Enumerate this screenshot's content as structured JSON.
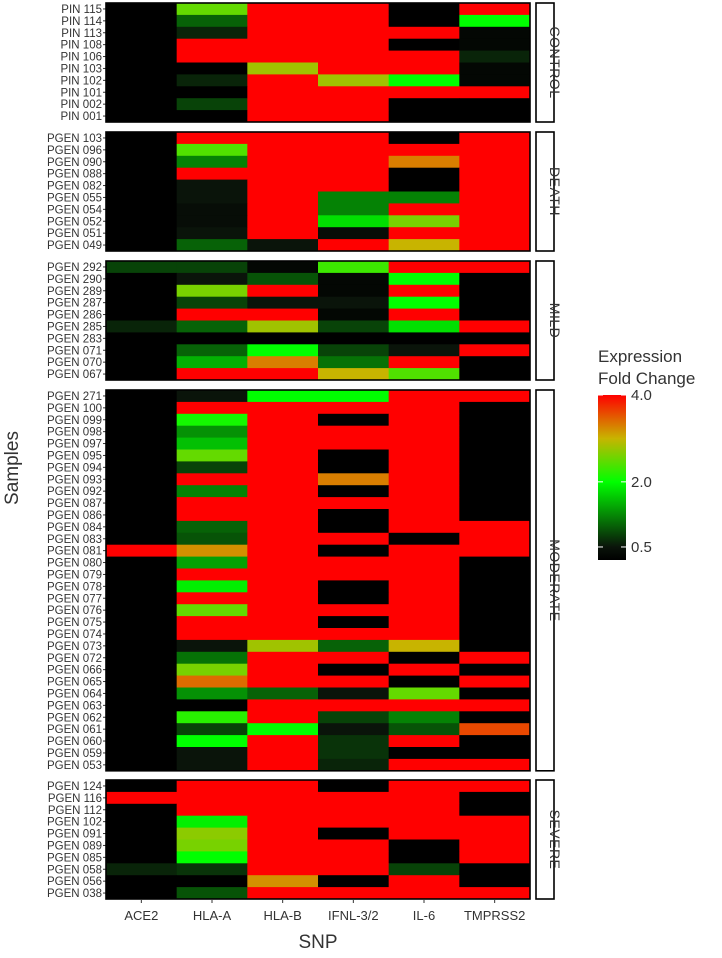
{
  "chart_data": {
    "type": "heatmap",
    "xlabel": "SNP",
    "ylabel": "Samples",
    "columns": [
      "ACE2",
      "HLA-A",
      "HLA-B",
      "IFNL-3/2",
      "IL-6",
      "TMPRSS2"
    ],
    "legend": {
      "title_line1": "Expression",
      "title_line2": "Fold Change",
      "ticks": [
        {
          "label": "4.0",
          "value": 4.0
        },
        {
          "label": "2.0",
          "value": 2.0
        },
        {
          "label": "0.5",
          "value": 0.5
        }
      ],
      "range": [
        0.2,
        4.0
      ],
      "color_stops": [
        {
          "value": 0.2,
          "color": "#000000"
        },
        {
          "value": 0.5,
          "color": "#0a140a"
        },
        {
          "value": 2.0,
          "color": "#00ff00"
        },
        {
          "value": 3.0,
          "color": "#c8b400"
        },
        {
          "value": 4.0,
          "color": "#ff0000"
        }
      ]
    },
    "groups": [
      {
        "name": "CONTROL",
        "samples": [
          "PIN 115",
          "PIN 114",
          "PIN 113",
          "PIN 108",
          "PIN 106",
          "PIN 103",
          "PIN 102",
          "PIN 101",
          "PIN 002",
          "PIN 001"
        ],
        "values": [
          [
            0.2,
            2.5,
            4,
            4,
            0.2,
            4
          ],
          [
            0.2,
            1.0,
            4,
            4,
            0.2,
            2.0
          ],
          [
            0.2,
            0.6,
            4,
            4,
            4,
            0.3
          ],
          [
            0.2,
            4,
            4,
            4,
            0.2,
            0.3
          ],
          [
            0.2,
            4,
            4,
            4,
            4,
            0.6
          ],
          [
            0.2,
            0.2,
            2.8,
            4,
            4,
            0.3
          ],
          [
            0.2,
            0.6,
            4,
            2.8,
            2.0,
            0.3
          ],
          [
            0.2,
            0.2,
            4,
            4,
            4,
            4
          ],
          [
            0.2,
            0.8,
            4,
            4,
            0.2,
            0.2
          ],
          [
            0.2,
            0.2,
            4,
            4,
            0.2,
            0.2
          ]
        ]
      },
      {
        "name": "DEATH",
        "samples": [
          "PGEN 103",
          "PGEN 096",
          "PGEN 090",
          "PGEN 088",
          "PGEN 082",
          "PGEN 055",
          "PGEN 054",
          "PGEN 052",
          "PGEN 051",
          "PGEN 049"
        ],
        "values": [
          [
            0.2,
            4,
            4,
            4,
            0.2,
            4
          ],
          [
            0.2,
            2.4,
            4,
            4,
            4,
            4
          ],
          [
            0.2,
            1.2,
            4,
            4,
            3.3,
            4
          ],
          [
            0.2,
            4,
            4,
            4,
            0.2,
            4
          ],
          [
            0.2,
            0.5,
            4,
            4,
            0.2,
            4
          ],
          [
            0.2,
            0.5,
            4,
            1.2,
            1.2,
            4
          ],
          [
            0.2,
            0.4,
            4,
            1.2,
            4,
            4
          ],
          [
            0.2,
            0.4,
            4,
            1.8,
            2.6,
            4
          ],
          [
            0.2,
            0.5,
            4,
            0.4,
            4,
            4
          ],
          [
            0.2,
            1.0,
            0.5,
            4,
            3.0,
            4
          ]
        ]
      },
      {
        "name": "MILD",
        "samples": [
          "PGEN 292",
          "PGEN 290",
          "PGEN 289",
          "PGEN 287",
          "PGEN 286",
          "PGEN 285",
          "PGEN 283",
          "PGEN 071",
          "PGEN 070",
          "PGEN 067"
        ],
        "values": [
          [
            0.8,
            0.8,
            0.3,
            2.3,
            4,
            4
          ],
          [
            0.2,
            0.5,
            0.9,
            0.3,
            2.0,
            0.2
          ],
          [
            0.2,
            2.6,
            4,
            0.3,
            4,
            0.2
          ],
          [
            0.2,
            0.8,
            0.5,
            0.5,
            2.0,
            0.2
          ],
          [
            0.2,
            4,
            4,
            0.3,
            4,
            0.2
          ],
          [
            0.6,
            1.0,
            2.8,
            0.8,
            1.8,
            4
          ],
          [
            0.2,
            0.2,
            0.2,
            0.2,
            0.2,
            0.2
          ],
          [
            0.2,
            1.0,
            2.0,
            0.8,
            0.5,
            4
          ],
          [
            0.2,
            1.5,
            3.3,
            1.1,
            4,
            0.2
          ],
          [
            0.2,
            4,
            4,
            3.0,
            2.4,
            0.2
          ]
        ]
      },
      {
        "name": "MODERATE",
        "samples": [
          "PGEN 271",
          "PGEN 100",
          "PGEN 099",
          "PGEN 098",
          "PGEN 097",
          "PGEN 095",
          "PGEN 094",
          "PGEN 093",
          "PGEN 092",
          "PGEN 087",
          "PGEN 086",
          "PGEN 084",
          "PGEN 083",
          "PGEN 081",
          "PGEN 080",
          "PGEN 079",
          "PGEN 078",
          "PGEN 077",
          "PGEN 076",
          "PGEN 075",
          "PGEN 074",
          "PGEN 073",
          "PGEN 072",
          "PGEN 066",
          "PGEN 065",
          "PGEN 064",
          "PGEN 063",
          "PGEN 062",
          "PGEN 061",
          "PGEN 060",
          "PGEN 059",
          "PGEN 053"
        ],
        "values": [
          [
            0.2,
            0.5,
            2.0,
            2.0,
            4,
            4
          ],
          [
            0.2,
            4,
            4,
            4,
            4,
            0.2
          ],
          [
            0.2,
            2.1,
            4,
            0.2,
            4,
            0.2
          ],
          [
            0.2,
            1.3,
            4,
            4,
            4,
            0.2
          ],
          [
            0.2,
            1.6,
            4,
            4,
            4,
            0.2
          ],
          [
            0.2,
            2.5,
            4,
            0.2,
            4,
            0.2
          ],
          [
            0.2,
            0.8,
            4,
            0.2,
            4,
            0.2
          ],
          [
            0.2,
            4,
            4,
            3.3,
            4,
            0.2
          ],
          [
            0.2,
            1.2,
            4,
            0.2,
            4,
            0.2
          ],
          [
            0.2,
            4,
            4,
            4,
            4,
            0.2
          ],
          [
            0.2,
            4,
            4,
            0.2,
            4,
            0.2
          ],
          [
            0.2,
            1.0,
            4,
            0.2,
            4,
            4
          ],
          [
            0.2,
            0.9,
            4,
            4,
            0.2,
            4
          ],
          [
            4,
            3.2,
            4,
            0.2,
            4,
            4
          ],
          [
            0.2,
            1.4,
            4,
            4,
            4,
            0.2
          ],
          [
            0.2,
            4,
            4,
            4,
            4,
            0.2
          ],
          [
            0.2,
            1.9,
            4,
            0.2,
            4,
            0.2
          ],
          [
            0.2,
            4,
            4,
            0.2,
            4,
            0.2
          ],
          [
            0.2,
            2.5,
            4,
            4,
            4,
            0.2
          ],
          [
            0.2,
            4,
            4,
            0.2,
            4,
            0.2
          ],
          [
            0.2,
            4,
            4,
            4,
            4,
            0.2
          ],
          [
            0.2,
            0.5,
            2.8,
            1.0,
            3.0,
            0.2
          ],
          [
            0.2,
            1.1,
            4,
            4,
            0.2,
            4
          ],
          [
            0.2,
            2.6,
            4,
            0.2,
            4,
            0.2
          ],
          [
            0.2,
            3.4,
            4,
            4,
            0.2,
            4
          ],
          [
            0.2,
            1.3,
            1.0,
            0.5,
            2.5,
            0.2
          ],
          [
            0.2,
            0.2,
            4,
            4,
            4,
            4
          ],
          [
            0.2,
            2.2,
            4,
            0.8,
            1.2,
            0.2
          ],
          [
            0.2,
            0.8,
            2.0,
            0.5,
            0.9,
            3.6
          ],
          [
            0.2,
            2.0,
            4,
            0.7,
            4,
            0.2
          ],
          [
            0.2,
            0.5,
            4,
            0.7,
            0.2,
            0.2
          ],
          [
            0.2,
            0.5,
            4,
            0.6,
            4,
            4
          ]
        ]
      },
      {
        "name": "SEVERE",
        "samples": [
          "PGEN 124",
          "PGEN 116",
          "PGEN 112",
          "PGEN 102",
          "PGEN 091",
          "PGEN 089",
          "PGEN 085",
          "PGEN 058",
          "PGEN 056",
          "PGEN 038"
        ],
        "values": [
          [
            0.2,
            4,
            4,
            0.2,
            4,
            4
          ],
          [
            4,
            4,
            4,
            4,
            4,
            0.2
          ],
          [
            0.2,
            4,
            4,
            4,
            4,
            0.2
          ],
          [
            0.2,
            1.9,
            4,
            4,
            4,
            4
          ],
          [
            0.2,
            2.7,
            4,
            0.2,
            4,
            4
          ],
          [
            0.2,
            2.6,
            4,
            4,
            0.2,
            4
          ],
          [
            0.2,
            2.0,
            4,
            4,
            0.2,
            4
          ],
          [
            0.6,
            0.7,
            4,
            4,
            0.8,
            0.2
          ],
          [
            0.2,
            0.2,
            3.2,
            0.2,
            4,
            0.2
          ],
          [
            0.2,
            0.9,
            4,
            4,
            4,
            4
          ]
        ]
      }
    ]
  }
}
